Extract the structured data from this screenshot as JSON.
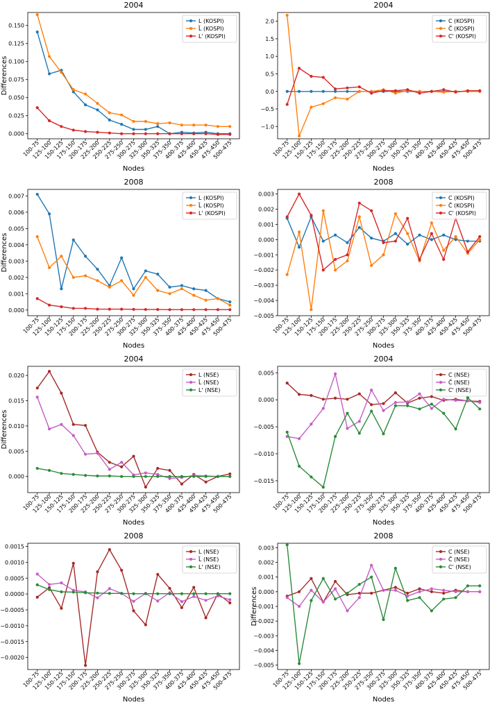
{
  "colors": {
    "blue": "#1f77b4",
    "orange": "#ff7f0e",
    "red": "#d62728",
    "darkred": "#a52a2a",
    "pink": "#c45ec4",
    "green": "#2a8a3a"
  },
  "chart_data": [
    {
      "type": "line",
      "title": "2004",
      "xlabel": "Nodes",
      "ylabel": "Differences",
      "categories": [
        "100-75",
        "125-100",
        "150-125",
        "175-150",
        "200-175",
        "225-200",
        "250-225",
        "275-250",
        "300-275",
        "325-300",
        "350-325",
        "375-350",
        "400-375",
        "425-400",
        "450-425",
        "475-450",
        "500-475"
      ],
      "ylim": [
        -0.007,
        0.168
      ],
      "yticks": [
        0.0,
        0.025,
        0.05,
        0.075,
        0.1,
        0.125,
        0.15
      ],
      "ytick_labels": [
        "0.000",
        "0.025",
        "0.050",
        "0.075",
        "0.100",
        "0.125",
        "0.150"
      ],
      "legend": "top-right",
      "series": [
        {
          "name": "L (KOSPI)",
          "color": "blue",
          "values": [
            0.141,
            0.083,
            0.088,
            0.058,
            0.04,
            0.033,
            0.019,
            0.013,
            0.006,
            0.006,
            0.01,
            0.0,
            0.002,
            0.001,
            0.002,
            0.0,
            0.0
          ]
        },
        {
          "name": "L̃ (KOSPI)",
          "color": "orange",
          "values": [
            0.165,
            0.107,
            0.085,
            0.061,
            0.055,
            0.042,
            0.029,
            0.026,
            0.017,
            0.017,
            0.014,
            0.015,
            0.012,
            0.012,
            0.012,
            0.01,
            0.01
          ]
        },
        {
          "name": "L' (KOSPI)",
          "color": "red",
          "values": [
            0.036,
            0.018,
            0.01,
            0.005,
            0.003,
            0.002,
            0.001,
            0.0,
            0.0,
            0.0,
            0.0,
            0.0,
            0.0,
            0.0,
            0.0,
            -0.001,
            -0.001
          ]
        }
      ]
    },
    {
      "type": "line",
      "title": "2004",
      "xlabel": "Nodes",
      "ylabel": "",
      "categories": [
        "100-75",
        "125-100",
        "150-125",
        "175-150",
        "200-175",
        "225-200",
        "250-225",
        "275-250",
        "300-275",
        "325-300",
        "350-325",
        "375-350",
        "400-375",
        "425-400",
        "450-425",
        "475-450",
        "500-475"
      ],
      "ylim": [
        -1.35,
        2.25
      ],
      "yticks": [
        -1.0,
        -0.5,
        0.0,
        0.5,
        1.0,
        1.5,
        2.0
      ],
      "ytick_labels": [
        "−1.0",
        "−0.5",
        "0.0",
        "0.5",
        "1.0",
        "1.5",
        "2.0"
      ],
      "legend": "top-right",
      "series": [
        {
          "name": "C (KOSPI)",
          "color": "blue",
          "values": [
            0.0,
            0.0,
            0.0,
            0.0,
            0.0,
            0.0,
            0.0,
            0.0,
            0.0,
            0.0,
            0.0,
            0.0,
            0.0,
            0.0,
            0.0,
            0.0,
            0.0
          ]
        },
        {
          "name": "C̃ (KOSPI)",
          "color": "orange",
          "values": [
            2.17,
            -1.27,
            -0.45,
            -0.35,
            -0.18,
            -0.22,
            0.0,
            0.0,
            0.05,
            -0.05,
            0.02,
            0.0,
            0.0,
            -0.02,
            0.0,
            0.0,
            0.0
          ]
        },
        {
          "name": "C' (KOSPI)",
          "color": "red",
          "values": [
            -0.37,
            0.66,
            0.43,
            0.4,
            0.07,
            0.1,
            0.13,
            -0.05,
            0.02,
            0.02,
            0.05,
            -0.05,
            0.0,
            0.05,
            -0.02,
            0.02,
            0.02
          ]
        }
      ]
    },
    {
      "type": "line",
      "title": "2008",
      "xlabel": "Nodes",
      "ylabel": "Differences",
      "categories": [
        "100-75",
        "125-100",
        "150-125",
        "175-150",
        "200-175",
        "225-200",
        "250-225",
        "275-250",
        "300-275",
        "325-300",
        "350-325",
        "375-350",
        "400-375",
        "425-400",
        "450-425",
        "475-450",
        "500-475"
      ],
      "ylim": [
        -0.00035,
        0.0074
      ],
      "yticks": [
        0.0,
        0.001,
        0.002,
        0.003,
        0.004,
        0.005,
        0.006,
        0.007
      ],
      "ytick_labels": [
        "0.000",
        "0.001",
        "0.002",
        "0.003",
        "0.004",
        "0.005",
        "0.006",
        "0.007"
      ],
      "legend": "top-right",
      "series": [
        {
          "name": "L (KOSPI)",
          "color": "blue",
          "values": [
            0.0071,
            0.0059,
            0.0013,
            0.0043,
            0.0033,
            0.0025,
            0.0015,
            0.0032,
            0.0013,
            0.0024,
            0.0022,
            0.0014,
            0.0015,
            0.0013,
            0.0012,
            0.0007,
            0.0005
          ]
        },
        {
          "name": "L̃ (KOSPI)",
          "color": "orange",
          "values": [
            0.0045,
            0.0026,
            0.0033,
            0.002,
            0.0021,
            0.0018,
            0.0014,
            0.0018,
            0.0009,
            0.002,
            0.0012,
            0.001,
            0.0013,
            0.0009,
            0.0006,
            0.0007,
            0.0003
          ]
        },
        {
          "name": "L' (KOSPI)",
          "color": "red",
          "values": [
            0.0007,
            0.0003,
            0.0002,
            0.0001,
            0.0001,
            5e-05,
            5e-05,
            5e-05,
            4e-05,
            3e-05,
            3e-05,
            2e-05,
            2e-05,
            2e-05,
            2e-05,
            2e-05,
            2e-05
          ]
        }
      ]
    },
    {
      "type": "line",
      "title": "2008",
      "xlabel": "Nodes",
      "ylabel": "",
      "categories": [
        "100-75",
        "125-100",
        "150-125",
        "175-150",
        "200-175",
        "225-200",
        "250-225",
        "275-250",
        "300-275",
        "325-300",
        "350-325",
        "375-350",
        "400-375",
        "425-400",
        "450-425",
        "475-450",
        "500-475"
      ],
      "ylim": [
        -0.005,
        0.0033
      ],
      "yticks": [
        -0.005,
        -0.004,
        -0.003,
        -0.002,
        -0.001,
        0.0,
        0.001,
        0.002,
        0.003
      ],
      "ytick_labels": [
        "−0.005",
        "−0.004",
        "−0.003",
        "−0.002",
        "−0.001",
        "0.000",
        "0.001",
        "0.002",
        "0.003"
      ],
      "legend": "top-right",
      "series": [
        {
          "name": "C (KOSPI)",
          "color": "blue",
          "values": [
            0.0014,
            -0.0005,
            0.0015,
            -0.0001,
            0.0003,
            -0.0002,
            0.0008,
            0.0001,
            -0.0001,
            0.0004,
            -0.0003,
            0.0003,
            0.0,
            0.0003,
            0.0,
            -0.0001,
            -0.0001
          ]
        },
        {
          "name": "C̃ (KOSPI)",
          "color": "orange",
          "values": [
            -0.0023,
            0.0005,
            -0.0046,
            0.0019,
            -0.002,
            -0.0014,
            0.0015,
            -0.0017,
            -0.001,
            0.0017,
            0.0004,
            -0.0014,
            0.0011,
            -0.0007,
            0.0002,
            -0.0009,
            0.0
          ]
        },
        {
          "name": "C' (KOSPI)",
          "color": "red",
          "values": [
            0.0015,
            0.003,
            0.0016,
            -0.002,
            -0.0013,
            -0.001,
            0.0024,
            0.0019,
            -0.0002,
            -0.0001,
            0.0014,
            -0.0013,
            0.0004,
            -0.0013,
            0.0014,
            -0.0008,
            0.0002
          ]
        }
      ]
    },
    {
      "type": "line",
      "title": "2004",
      "xlabel": "Nodes",
      "ylabel": "Differences",
      "categories": [
        "100-75",
        "125-100",
        "150-125",
        "175-150",
        "200-175",
        "225-200",
        "250-225",
        "275-250",
        "300-275",
        "325-300",
        "350-325",
        "375-350",
        "400-375",
        "425-400",
        "450-425",
        "475-450",
        "500-475"
      ],
      "ylim": [
        -0.0032,
        0.0218
      ],
      "yticks": [
        0.0,
        0.005,
        0.01,
        0.015,
        0.02
      ],
      "ytick_labels": [
        "0.000",
        "0.005",
        "0.010",
        "0.015",
        "0.020"
      ],
      "legend": "top-right",
      "series": [
        {
          "name": "L (NSE)",
          "color": "darkred",
          "values": [
            0.0175,
            0.0208,
            0.0165,
            0.0103,
            0.0101,
            0.0048,
            0.0028,
            0.0019,
            0.004,
            -0.0021,
            0.0016,
            0.0012,
            -0.0015,
            0.0004,
            -0.0011,
            0.0,
            0.0005
          ]
        },
        {
          "name": "L̃ (NSE)",
          "color": "pink",
          "values": [
            0.0157,
            0.0094,
            0.0103,
            0.0081,
            0.0044,
            0.0046,
            0.0014,
            0.0028,
            0.0003,
            0.0007,
            0.0004,
            -0.0004,
            -0.0002,
            0.0002,
            0.0001,
            0.0,
            0.0
          ]
        },
        {
          "name": "L' (NSE)",
          "color": "green",
          "values": [
            0.0016,
            0.0012,
            0.0006,
            0.0004,
            0.0002,
            0.0001,
            0.0001,
            0.0,
            0.0,
            0.0,
            0.0,
            0.0,
            0.0,
            0.0,
            0.0,
            0.0,
            0.0
          ]
        }
      ]
    },
    {
      "type": "line",
      "title": "2004",
      "xlabel": "Nodes",
      "ylabel": "",
      "categories": [
        "100-75",
        "125-100",
        "150-125",
        "175-150",
        "200-175",
        "225-200",
        "250-225",
        "275-250",
        "300-275",
        "325-300",
        "350-325",
        "375-350",
        "400-375",
        "425-400",
        "450-425",
        "475-450",
        "500-475"
      ],
      "ylim": [
        -0.0172,
        0.0062
      ],
      "yticks": [
        -0.015,
        -0.01,
        -0.005,
        0.0,
        0.005
      ],
      "ytick_labels": [
        "−0.015",
        "−0.010",
        "−0.005",
        "0.000",
        "0.005"
      ],
      "legend": "top-right",
      "series": [
        {
          "name": "C (NSE)",
          "color": "darkred",
          "values": [
            0.0031,
            0.001,
            0.0008,
            0.0001,
            0.0003,
            0.0001,
            0.0011,
            -0.0009,
            -0.0007,
            0.0013,
            -0.0006,
            0.0003,
            0.0006,
            -0.0001,
            0.0001,
            -0.0002,
            -0.0003
          ]
        },
        {
          "name": "C̃ (NSE)",
          "color": "pink",
          "values": [
            -0.0068,
            -0.0072,
            -0.0045,
            -0.0016,
            0.0048,
            -0.0053,
            -0.004,
            0.0018,
            -0.002,
            -0.0005,
            -0.0004,
            0.0011,
            -0.0016,
            0.0001,
            -0.0001,
            -0.0002,
            -0.0005
          ]
        },
        {
          "name": "C' (NSE)",
          "color": "green",
          "values": [
            -0.006,
            -0.0123,
            -0.0143,
            -0.0162,
            -0.0068,
            -0.0025,
            -0.0062,
            -0.0021,
            -0.0063,
            -0.0011,
            -0.0011,
            -0.0017,
            -0.0008,
            -0.0025,
            -0.0054,
            0.0004,
            -0.0017
          ]
        }
      ]
    },
    {
      "type": "line",
      "title": "2008",
      "xlabel": "Nodes",
      "ylabel": "",
      "categories": [
        "100-75",
        "125-100",
        "150-125",
        "175-150",
        "200-175",
        "225-200",
        "250-225",
        "275-250",
        "300-275",
        "325-300",
        "350-325",
        "375-350",
        "400-375",
        "425-400",
        "450-425",
        "475-450",
        "500-475"
      ],
      "ylim": [
        -0.00238,
        0.0016
      ],
      "yticks": [
        -0.002,
        -0.0015,
        -0.001,
        -0.0005,
        0.0,
        0.0005,
        0.001,
        0.0015
      ],
      "ytick_labels": [
        "−0.0020",
        "−0.0015",
        "−0.0010",
        "−0.0005",
        "0.0000",
        "0.0005",
        "0.0010",
        "0.0015"
      ],
      "legend": "top-right",
      "series": [
        {
          "name": "L (NSE)",
          "color": "darkred",
          "values": [
            -0.0001,
            0.0002,
            -0.00045,
            0.00097,
            -0.00225,
            0.0007,
            0.0014,
            0.00075,
            -0.00053,
            -0.00097,
            0.00062,
            0.00018,
            -0.00043,
            0.00021,
            -0.00075,
            1e-05,
            -0.00028
          ]
        },
        {
          "name": "L̃ (NSE)",
          "color": "pink",
          "values": [
            0.00063,
            0.0003,
            0.00035,
            0.00012,
            7e-05,
            -0.00012,
            0.00017,
            2e-05,
            -0.00023,
            2e-05,
            -0.00022,
            4e-05,
            -0.00024,
            -8e-05,
            -0.0002,
            -6e-05,
            -0.00018
          ]
        },
        {
          "name": "L' (NSE)",
          "color": "green",
          "values": [
            0.00029,
            0.00014,
            7e-05,
            6e-05,
            4e-05,
            3e-05,
            2e-05,
            2e-05,
            1e-05,
            1e-05,
            1e-05,
            1e-05,
            1e-05,
            1e-05,
            1e-05,
            1e-05,
            1e-05
          ]
        }
      ]
    },
    {
      "type": "line",
      "title": "2008",
      "xlabel": "Nodes",
      "ylabel": "Differences",
      "categories": [
        "100-75",
        "125-100",
        "150-125",
        "175-150",
        "200-175",
        "225-200",
        "250-225",
        "275-250",
        "300-275",
        "325-300",
        "350-325",
        "375-350",
        "400-375",
        "425-400",
        "450-425",
        "475-450",
        "500-475"
      ],
      "ylim": [
        -0.0053,
        0.0033
      ],
      "yticks": [
        -0.005,
        -0.004,
        -0.003,
        -0.002,
        -0.001,
        0.0,
        0.001,
        0.002,
        0.003
      ],
      "ytick_labels": [
        "−0.005",
        "−0.004",
        "−0.003",
        "−0.002",
        "−0.001",
        "0.000",
        "0.001",
        "0.002",
        "0.003"
      ],
      "legend": "top-right",
      "series": [
        {
          "name": "C (NSE)",
          "color": "darkred",
          "values": [
            -0.0003,
            0.0,
            0.0009,
            -0.0007,
            0.0007,
            -0.0002,
            -0.0001,
            -0.0001,
            0.0001,
            0.0003,
            -0.0001,
            0.0002,
            0.0,
            -0.0001,
            0.0001,
            0.0,
            0.0
          ]
        },
        {
          "name": "C̃ (NSE)",
          "color": "pink",
          "values": [
            -0.0004,
            -0.001,
            0.0001,
            -0.0007,
            0.0002,
            -0.0013,
            -0.0004,
            0.0018,
            0.0001,
            0.0001,
            -0.0003,
            0.0,
            0.0002,
            0.0001,
            0.0,
            0.0,
            0.0
          ]
        },
        {
          "name": "C' (NSE)",
          "color": "green",
          "values": [
            0.0032,
            -0.0049,
            -0.0006,
            0.0009,
            -0.0005,
            -0.0001,
            0.0005,
            0.001,
            -0.0019,
            0.0016,
            -0.0006,
            -0.0004,
            -0.0013,
            -0.0005,
            -0.0004,
            0.0004,
            0.0004
          ]
        }
      ]
    }
  ]
}
